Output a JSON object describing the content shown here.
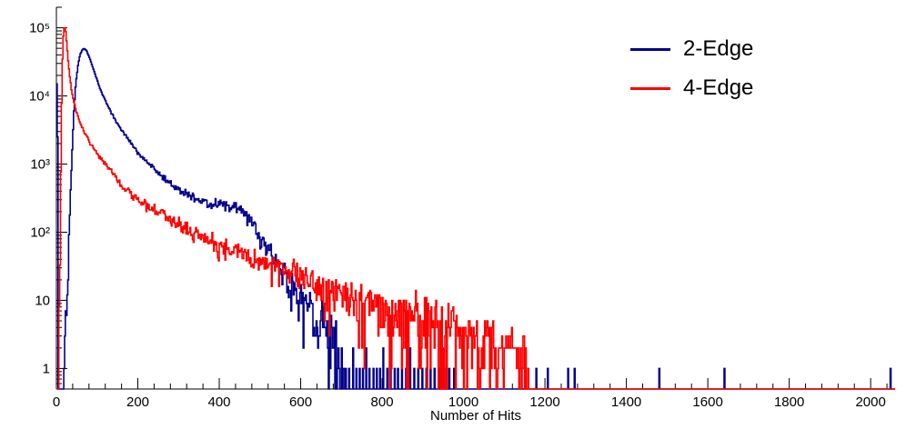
{
  "chart_data": {
    "type": "line",
    "subtype": "step-histogram",
    "title": "",
    "xlabel": "Number of Hits",
    "ylabel": "",
    "x_range": [
      0,
      2060
    ],
    "y_range": [
      0.5,
      200000
    ],
    "y_scale": "log",
    "grid": false,
    "x_major_ticks": [
      {
        "value": 0,
        "label": "0"
      },
      {
        "value": 200,
        "label": "200"
      },
      {
        "value": 400,
        "label": "400"
      },
      {
        "value": 600,
        "label": "600"
      },
      {
        "value": 800,
        "label": "800"
      },
      {
        "value": 1000,
        "label": "1000"
      },
      {
        "value": 1200,
        "label": "1200"
      },
      {
        "value": 1400,
        "label": "1400"
      },
      {
        "value": 1600,
        "label": "1600"
      },
      {
        "value": 1800,
        "label": "1800"
      },
      {
        "value": 2000,
        "label": "2000"
      }
    ],
    "x_minor_step": 40,
    "y_major_ticks": [
      {
        "value": 1,
        "label": "1"
      },
      {
        "value": 10,
        "label": "10"
      },
      {
        "value": 100,
        "label": "10²"
      },
      {
        "value": 1000,
        "label": "10³"
      },
      {
        "value": 10000,
        "label": "10⁴"
      },
      {
        "value": 100000,
        "label": "10⁵"
      }
    ],
    "legend": {
      "position": "top-right",
      "entries": [
        {
          "label": "2-Edge",
          "color": "#00008c"
        },
        {
          "label": "4-Edge",
          "color": "#ff0000"
        }
      ]
    },
    "bin_width": 2,
    "noise_seed": 20240613,
    "series": [
      {
        "name": "2-Edge",
        "color": "#00008c",
        "noise_k": 1.4,
        "envelope": [
          [
            16,
            0
          ],
          [
            22,
            2
          ],
          [
            28,
            25
          ],
          [
            33,
            200
          ],
          [
            38,
            1200
          ],
          [
            43,
            6000
          ],
          [
            48,
            16000
          ],
          [
            53,
            28000
          ],
          [
            58,
            40000
          ],
          [
            63,
            47000
          ],
          [
            68,
            50000
          ],
          [
            74,
            46500
          ],
          [
            80,
            38000
          ],
          [
            88,
            28000
          ],
          [
            96,
            20000
          ],
          [
            105,
            14000
          ],
          [
            115,
            10000
          ],
          [
            128,
            6800
          ],
          [
            142,
            4700
          ],
          [
            158,
            3300
          ],
          [
            175,
            2400
          ],
          [
            195,
            1650
          ],
          [
            215,
            1200
          ],
          [
            235,
            900
          ],
          [
            255,
            700
          ],
          [
            278,
            540
          ],
          [
            300,
            430
          ],
          [
            325,
            345
          ],
          [
            350,
            295
          ],
          [
            375,
            262
          ],
          [
            400,
            245
          ],
          [
            425,
            238
          ],
          [
            445,
            225
          ],
          [
            465,
            185
          ],
          [
            482,
            135
          ],
          [
            498,
            95
          ],
          [
            514,
            66
          ],
          [
            530,
            45
          ],
          [
            548,
            30
          ],
          [
            565,
            21
          ],
          [
            582,
            15
          ],
          [
            600,
            11
          ],
          [
            620,
            7.5
          ],
          [
            640,
            5
          ],
          [
            660,
            3.2
          ],
          [
            678,
            2
          ],
          [
            695,
            1.2
          ],
          [
            705,
            0.7
          ],
          [
            710,
            0
          ]
        ],
        "spikes": [
          [
            1,
            15000
          ],
          [
            3,
            2500
          ],
          [
            688,
            1
          ],
          [
            695,
            2
          ],
          [
            703,
            1
          ],
          [
            711,
            1
          ],
          [
            719,
            1
          ],
          [
            728,
            2
          ],
          [
            736,
            1
          ],
          [
            744,
            1
          ],
          [
            752,
            1
          ],
          [
            761,
            2
          ],
          [
            769,
            1
          ],
          [
            778,
            1
          ],
          [
            786,
            1
          ],
          [
            795,
            1
          ],
          [
            803,
            2
          ],
          [
            812,
            1
          ],
          [
            821,
            1
          ],
          [
            830,
            1
          ],
          [
            839,
            1
          ],
          [
            848,
            1
          ],
          [
            858,
            1
          ],
          [
            868,
            2
          ],
          [
            878,
            1
          ],
          [
            888,
            1
          ],
          [
            898,
            1
          ],
          [
            908,
            1
          ],
          [
            918,
            1
          ],
          [
            929,
            1
          ],
          [
            940,
            1
          ],
          [
            952,
            1
          ],
          [
            964,
            1
          ],
          [
            977,
            1
          ],
          [
            1150,
            1
          ],
          [
            1178,
            1
          ],
          [
            1206,
            1
          ],
          [
            1256,
            1
          ],
          [
            1272,
            1
          ],
          [
            1480,
            1
          ],
          [
            1640,
            1
          ],
          [
            2048,
            1
          ]
        ]
      },
      {
        "name": "4-Edge",
        "color": "#ff0000",
        "noise_k": 1.3,
        "envelope": [
          [
            5,
            0
          ],
          [
            8,
            8
          ],
          [
            10,
            200
          ],
          [
            12,
            3000
          ],
          [
            14,
            20000
          ],
          [
            16,
            60000
          ],
          [
            18,
            95000
          ],
          [
            20,
            105000
          ],
          [
            23,
            88000
          ],
          [
            26,
            55000
          ],
          [
            29,
            33000
          ],
          [
            33,
            19000
          ],
          [
            37,
            12500
          ],
          [
            42,
            8600
          ],
          [
            48,
            6200
          ],
          [
            55,
            4600
          ],
          [
            62,
            3600
          ],
          [
            70,
            2850
          ],
          [
            80,
            2200
          ],
          [
            90,
            1750
          ],
          [
            100,
            1420
          ],
          [
            115,
            1080
          ],
          [
            130,
            840
          ],
          [
            145,
            665
          ],
          [
            160,
            480
          ],
          [
            180,
            380
          ],
          [
            200,
            300
          ],
          [
            220,
            250
          ],
          [
            240,
            210
          ],
          [
            260,
            180
          ],
          [
            280,
            155
          ],
          [
            300,
            132
          ],
          [
            325,
            109
          ],
          [
            350,
            91
          ],
          [
            375,
            77
          ],
          [
            400,
            66
          ],
          [
            430,
            55
          ],
          [
            460,
            46
          ],
          [
            490,
            39
          ],
          [
            520,
            33
          ],
          [
            550,
            28
          ],
          [
            580,
            24
          ],
          [
            610,
            20.5
          ],
          [
            640,
            17.5
          ],
          [
            670,
            15
          ],
          [
            700,
            13
          ],
          [
            730,
            11
          ],
          [
            760,
            9.5
          ],
          [
            790,
            8.2
          ],
          [
            820,
            7.1
          ],
          [
            850,
            6.2
          ],
          [
            880,
            5.4
          ],
          [
            910,
            4.7
          ],
          [
            940,
            4.1
          ],
          [
            970,
            3.6
          ],
          [
            1000,
            3.1
          ],
          [
            1030,
            2.7
          ],
          [
            1060,
            2.3
          ],
          [
            1090,
            2.0
          ],
          [
            1115,
            1.7
          ],
          [
            1135,
            1.4
          ],
          [
            1150,
            1.1
          ],
          [
            1158,
            0.8
          ],
          [
            1162,
            0
          ]
        ],
        "spikes": []
      }
    ]
  }
}
